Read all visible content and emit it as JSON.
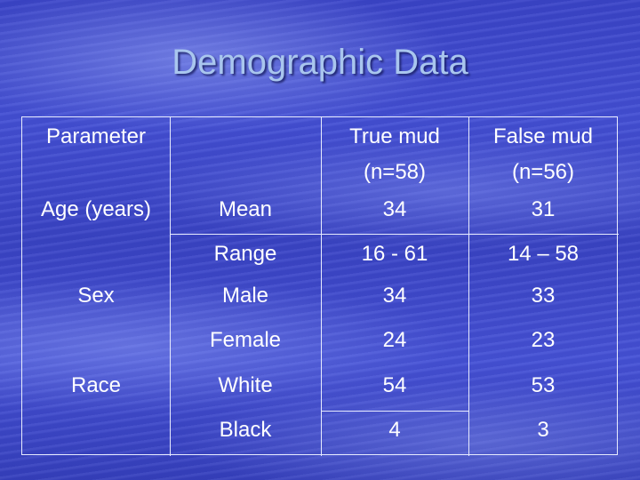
{
  "slide": {
    "title": "Demographic Data"
  },
  "table": {
    "header": {
      "parameter": "Parameter",
      "col_true_line1": "True mud",
      "col_true_line2": "(n=58)",
      "col_false_line1": "False mud",
      "col_false_line2": "(n=56)"
    },
    "rows": [
      {
        "group": "Age (years)",
        "sub": "Mean",
        "true_val": "34",
        "false_val": "31"
      },
      {
        "group": "",
        "sub": "Range",
        "true_val": "16 - 61",
        "false_val": "14 – 58"
      },
      {
        "group": "Sex",
        "sub": "Male",
        "true_val": "34",
        "false_val": "33"
      },
      {
        "group": "",
        "sub": "Female",
        "true_val": "24",
        "false_val": "23"
      },
      {
        "group": "Race",
        "sub": "White",
        "true_val": "54",
        "false_val": "53"
      },
      {
        "group": "",
        "sub": "Black",
        "true_val": "4",
        "false_val": "3"
      }
    ]
  }
}
